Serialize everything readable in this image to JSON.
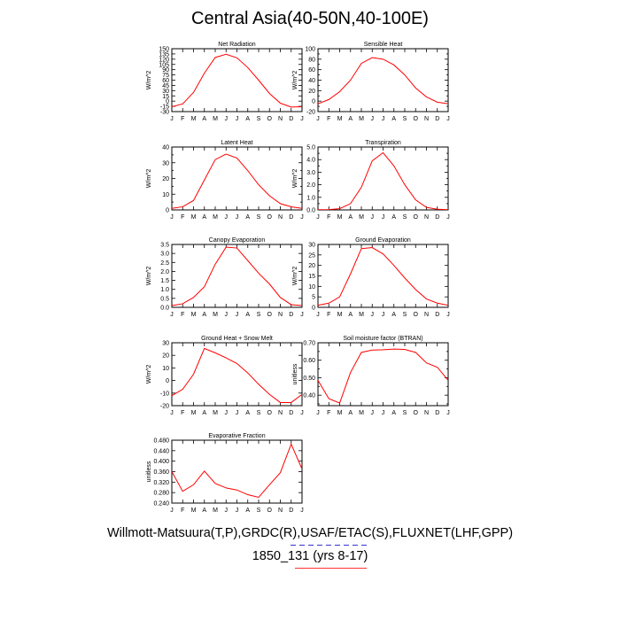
{
  "title": "Central Asia(40-50N,40-100E)",
  "footer": {
    "line1": "Willmott-Matsuura(T,P),GRDC(R),USAF/ETAC(S),FLUXNET(LHF,GPP)",
    "line2": "1850_131 (yrs 8-17)"
  },
  "colors": {
    "series": "#ff0000",
    "axis": "#000000",
    "key_blue": "#3333cc",
    "key_red": "#ff3333"
  },
  "chart_data": [
    {
      "type": "line",
      "title": "Net Radiation",
      "ylabel": "W/m^2",
      "x": [
        "J",
        "F",
        "M",
        "A",
        "M",
        "J",
        "J",
        "A",
        "S",
        "O",
        "N",
        "D",
        "J"
      ],
      "ylim": [
        -30,
        150
      ],
      "yticks": [
        -30,
        -15,
        0,
        15,
        30,
        45,
        60,
        75,
        90,
        105,
        120,
        135,
        150
      ],
      "ytick_labels": [
        "-30",
        "-15",
        "0",
        "15",
        "30",
        "45",
        "60",
        "75",
        "90",
        "105",
        "120",
        "135",
        "150"
      ],
      "values": [
        -16,
        -8,
        25,
        80,
        125,
        134,
        124,
        96,
        60,
        22,
        -6,
        -17,
        -16
      ]
    },
    {
      "type": "line",
      "title": "Sensible Heat",
      "ylabel": "W/m^2",
      "x": [
        "J",
        "F",
        "M",
        "A",
        "M",
        "J",
        "J",
        "A",
        "S",
        "O",
        "N",
        "D",
        "J"
      ],
      "ylim": [
        -20,
        100
      ],
      "yticks": [
        -20,
        -10,
        0,
        10,
        20,
        30,
        40,
        50,
        60,
        70,
        80,
        90,
        100
      ],
      "ytick_labels": [
        "-20",
        "",
        "0",
        "",
        "20",
        "",
        "40",
        "",
        "60",
        "",
        "80",
        "",
        "100"
      ],
      "values": [
        -5,
        3,
        18,
        40,
        72,
        83,
        80,
        69,
        50,
        25,
        8,
        -2,
        -5
      ]
    },
    {
      "type": "line",
      "title": "Latent Heat",
      "ylabel": "W/m^2",
      "x": [
        "J",
        "F",
        "M",
        "A",
        "M",
        "J",
        "J",
        "A",
        "S",
        "O",
        "N",
        "D",
        "J"
      ],
      "ylim": [
        0,
        40
      ],
      "yticks": [
        0,
        5,
        10,
        15,
        20,
        25,
        30,
        35,
        40
      ],
      "ytick_labels": [
        "0",
        "",
        "10",
        "",
        "20",
        "",
        "30",
        "",
        "40"
      ],
      "values": [
        1,
        2,
        6,
        19,
        32,
        35.5,
        33,
        25,
        16,
        9,
        4,
        2,
        1
      ]
    },
    {
      "type": "line",
      "title": "Transpiration",
      "ylabel": "W/m^2",
      "x": [
        "J",
        "F",
        "M",
        "A",
        "M",
        "J",
        "J",
        "A",
        "S",
        "O",
        "N",
        "D",
        "J"
      ],
      "ylim": [
        0,
        5
      ],
      "yticks": [
        0,
        0.5,
        1,
        1.5,
        2,
        2.5,
        3,
        3.5,
        4,
        4.5,
        5
      ],
      "ytick_labels": [
        "0.0",
        "",
        "1.0",
        "",
        "2.0",
        "",
        "3.0",
        "",
        "4.0",
        "",
        "5.0"
      ],
      "values": [
        0.02,
        0.03,
        0.1,
        0.5,
        1.8,
        3.9,
        4.55,
        3.5,
        2.0,
        0.8,
        0.2,
        0.05,
        0.02
      ]
    },
    {
      "type": "line",
      "title": "Canopy Evaporation",
      "ylabel": "W/m^2",
      "x": [
        "J",
        "F",
        "M",
        "A",
        "M",
        "J",
        "J",
        "A",
        "S",
        "O",
        "N",
        "D",
        "J"
      ],
      "ylim": [
        0,
        3.5
      ],
      "yticks": [
        0,
        0.5,
        1,
        1.5,
        2,
        2.5,
        3,
        3.5
      ],
      "ytick_labels": [
        "0.0",
        "0.5",
        "1.0",
        "1.5",
        "2.0",
        "2.5",
        "3.0",
        "3.5"
      ],
      "values": [
        0.1,
        0.2,
        0.55,
        1.15,
        2.4,
        3.35,
        3.3,
        2.6,
        1.9,
        1.3,
        0.55,
        0.15,
        0.1
      ]
    },
    {
      "type": "line",
      "title": "Ground Evaporation",
      "ylabel": "W/m^2",
      "x": [
        "J",
        "F",
        "M",
        "A",
        "M",
        "J",
        "J",
        "A",
        "S",
        "O",
        "N",
        "D",
        "J"
      ],
      "ylim": [
        0,
        30
      ],
      "yticks": [
        0,
        5,
        10,
        15,
        20,
        25,
        30
      ],
      "ytick_labels": [
        "0",
        "5",
        "10",
        "15",
        "20",
        "25",
        "30"
      ],
      "values": [
        1,
        2,
        5,
        16,
        28,
        28.5,
        25.5,
        20,
        14,
        8.5,
        4,
        2,
        1
      ]
    },
    {
      "type": "line",
      "title": "Ground Heat + Snow Melt",
      "ylabel": "W/m^2",
      "x": [
        "J",
        "F",
        "M",
        "A",
        "M",
        "J",
        "J",
        "A",
        "S",
        "O",
        "N",
        "D",
        "J"
      ],
      "ylim": [
        -20,
        30
      ],
      "yticks": [
        -20,
        -10,
        0,
        10,
        20,
        30
      ],
      "ytick_labels": [
        "-20",
        "-10",
        "0",
        "10",
        "20",
        "30"
      ],
      "values": [
        -12,
        -7,
        5,
        25.5,
        22,
        18,
        13.5,
        6,
        -3,
        -11,
        -17.5,
        -17.5,
        -11
      ]
    },
    {
      "type": "line",
      "title": "Soil moisture factor (BTRAN)",
      "ylabel": "unitless",
      "x": [
        "J",
        "F",
        "M",
        "A",
        "M",
        "J",
        "J",
        "A",
        "S",
        "O",
        "N",
        "D",
        "J"
      ],
      "ylim": [
        0.34,
        0.7
      ],
      "yticks": [
        0.35,
        0.4,
        0.45,
        0.5,
        0.55,
        0.6,
        0.65,
        0.7
      ],
      "ytick_labels": [
        "",
        "0.40",
        "",
        "0.50",
        "",
        "0.60",
        "",
        "0.70"
      ],
      "values": [
        0.485,
        0.38,
        0.355,
        0.53,
        0.645,
        0.658,
        0.66,
        0.664,
        0.662,
        0.645,
        0.585,
        0.56,
        0.485
      ]
    },
    {
      "type": "line",
      "title": "Evaporative Fraction",
      "ylabel": "unitless",
      "x": [
        "J",
        "F",
        "M",
        "A",
        "M",
        "J",
        "J",
        "A",
        "S",
        "O",
        "N",
        "D",
        "J"
      ],
      "ylim": [
        0.24,
        0.48
      ],
      "yticks": [
        0.24,
        0.28,
        0.32,
        0.36,
        0.4,
        0.44,
        0.48
      ],
      "ytick_labels": [
        "0.240",
        "0.280",
        "0.320",
        "0.360",
        "0.400",
        "0.440",
        "0.480"
      ],
      "values": [
        0.36,
        0.285,
        0.31,
        0.362,
        0.315,
        0.298,
        0.29,
        0.272,
        0.262,
        0.31,
        0.356,
        0.465,
        0.37
      ]
    }
  ]
}
